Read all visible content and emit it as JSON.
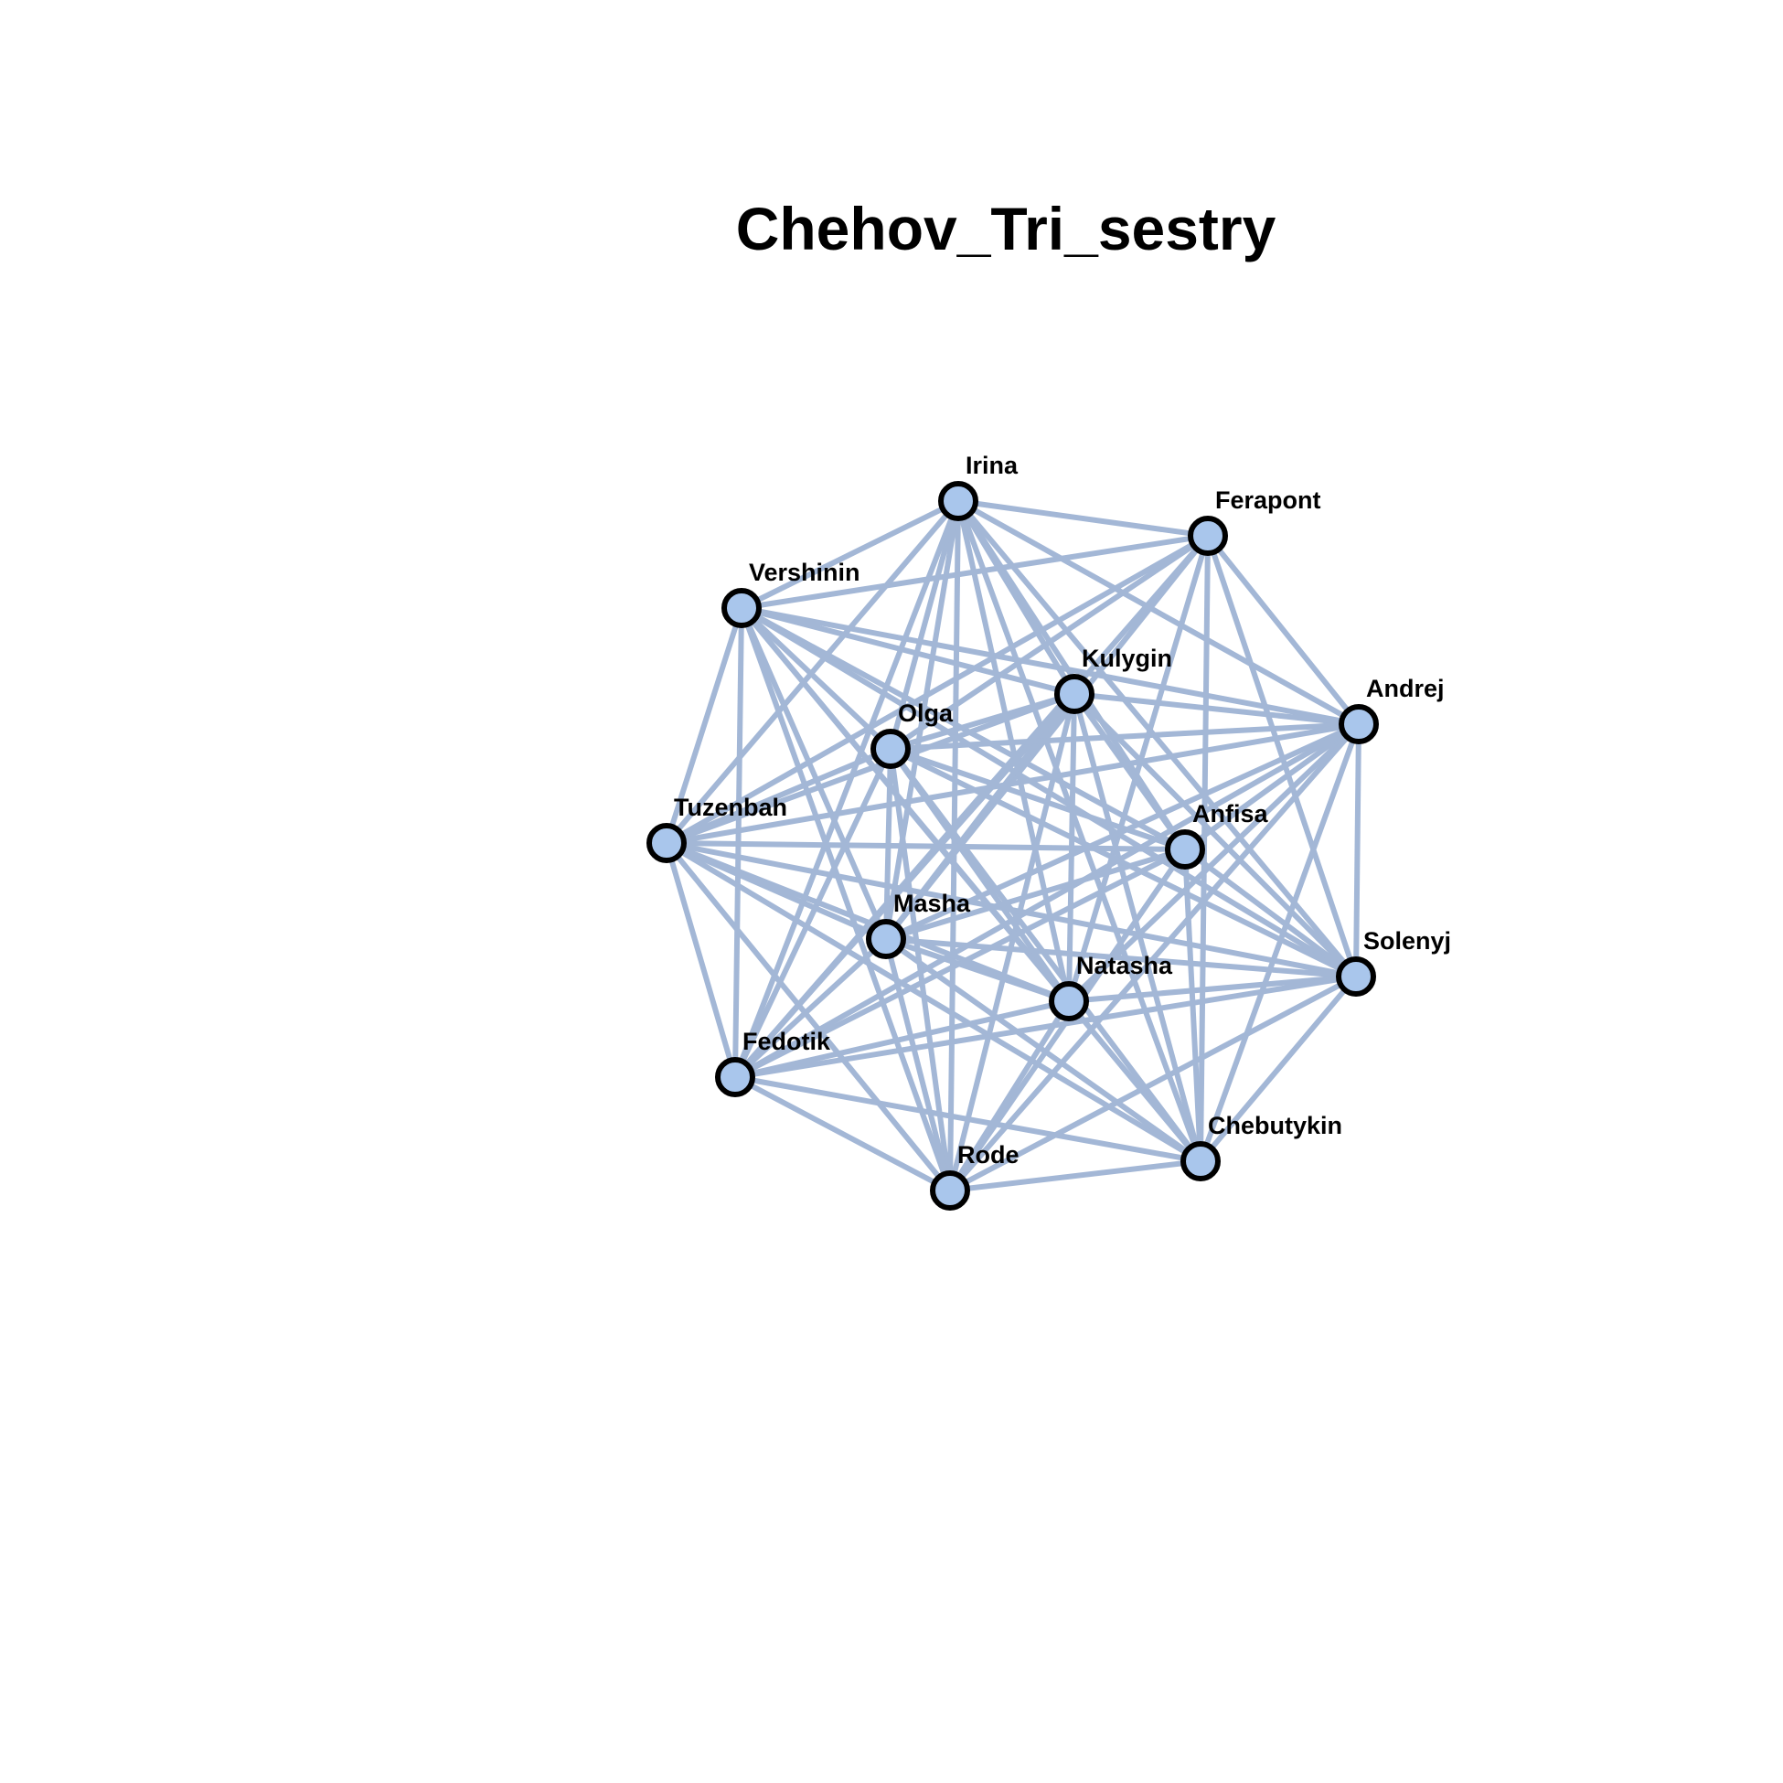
{
  "title": "Chehov_Tri_sestry",
  "colors": {
    "background": "#ffffff",
    "edge": "#a3b7d6",
    "node_fill": "#a9c6ec",
    "node_stroke": "#000000",
    "text": "#000000"
  },
  "nodes": [
    {
      "id": "irina",
      "label": "Irina"
    },
    {
      "id": "ferapont",
      "label": "Ferapont"
    },
    {
      "id": "vershinin",
      "label": "Vershinin"
    },
    {
      "id": "kulygin",
      "label": "Kulygin"
    },
    {
      "id": "andrej",
      "label": "Andrej"
    },
    {
      "id": "olga",
      "label": "Olga"
    },
    {
      "id": "tuzenbah",
      "label": "Tuzenbah"
    },
    {
      "id": "anfisa",
      "label": "Anfisa"
    },
    {
      "id": "masha",
      "label": "Masha"
    },
    {
      "id": "solenyj",
      "label": "Solenyj"
    },
    {
      "id": "natasha",
      "label": "Natasha"
    },
    {
      "id": "fedotik",
      "label": "Fedotik"
    },
    {
      "id": "chebutykin",
      "label": "Chebutykin"
    },
    {
      "id": "rode",
      "label": "Rode"
    }
  ],
  "edges": [
    [
      "irina",
      "ferapont"
    ],
    [
      "irina",
      "vershinin"
    ],
    [
      "irina",
      "kulygin"
    ],
    [
      "irina",
      "andrej"
    ],
    [
      "irina",
      "olga"
    ],
    [
      "irina",
      "tuzenbah"
    ],
    [
      "irina",
      "anfisa"
    ],
    [
      "irina",
      "masha"
    ],
    [
      "irina",
      "solenyj"
    ],
    [
      "irina",
      "natasha"
    ],
    [
      "irina",
      "fedotik"
    ],
    [
      "irina",
      "chebutykin"
    ],
    [
      "irina",
      "rode"
    ],
    [
      "ferapont",
      "vershinin"
    ],
    [
      "ferapont",
      "andrej"
    ],
    [
      "ferapont",
      "olga"
    ],
    [
      "ferapont",
      "masha"
    ],
    [
      "ferapont",
      "solenyj"
    ],
    [
      "ferapont",
      "natasha"
    ],
    [
      "ferapont",
      "fedotik"
    ],
    [
      "ferapont",
      "chebutykin"
    ],
    [
      "ferapont",
      "tuzenbah"
    ],
    [
      "vershinin",
      "kulygin"
    ],
    [
      "vershinin",
      "andrej"
    ],
    [
      "vershinin",
      "olga"
    ],
    [
      "vershinin",
      "tuzenbah"
    ],
    [
      "vershinin",
      "anfisa"
    ],
    [
      "vershinin",
      "masha"
    ],
    [
      "vershinin",
      "solenyj"
    ],
    [
      "vershinin",
      "natasha"
    ],
    [
      "vershinin",
      "fedotik"
    ],
    [
      "vershinin",
      "chebutykin"
    ],
    [
      "vershinin",
      "rode"
    ],
    [
      "kulygin",
      "olga"
    ],
    [
      "kulygin",
      "tuzenbah"
    ],
    [
      "kulygin",
      "anfisa"
    ],
    [
      "kulygin",
      "masha"
    ],
    [
      "kulygin",
      "solenyj"
    ],
    [
      "kulygin",
      "natasha"
    ],
    [
      "kulygin",
      "fedotik"
    ],
    [
      "kulygin",
      "chebutykin"
    ],
    [
      "kulygin",
      "rode"
    ],
    [
      "kulygin",
      "andrej"
    ],
    [
      "andrej",
      "olga"
    ],
    [
      "andrej",
      "tuzenbah"
    ],
    [
      "andrej",
      "anfisa"
    ],
    [
      "andrej",
      "masha"
    ],
    [
      "andrej",
      "solenyj"
    ],
    [
      "andrej",
      "natasha"
    ],
    [
      "andrej",
      "fedotik"
    ],
    [
      "andrej",
      "chebutykin"
    ],
    [
      "andrej",
      "rode"
    ],
    [
      "olga",
      "tuzenbah"
    ],
    [
      "olga",
      "anfisa"
    ],
    [
      "olga",
      "masha"
    ],
    [
      "olga",
      "solenyj"
    ],
    [
      "olga",
      "natasha"
    ],
    [
      "olga",
      "fedotik"
    ],
    [
      "olga",
      "chebutykin"
    ],
    [
      "olga",
      "rode"
    ],
    [
      "tuzenbah",
      "anfisa"
    ],
    [
      "tuzenbah",
      "masha"
    ],
    [
      "tuzenbah",
      "solenyj"
    ],
    [
      "tuzenbah",
      "natasha"
    ],
    [
      "tuzenbah",
      "fedotik"
    ],
    [
      "tuzenbah",
      "chebutykin"
    ],
    [
      "tuzenbah",
      "rode"
    ],
    [
      "anfisa",
      "masha"
    ],
    [
      "anfisa",
      "solenyj"
    ],
    [
      "anfisa",
      "fedotik"
    ],
    [
      "anfisa",
      "chebutykin"
    ],
    [
      "anfisa",
      "rode"
    ],
    [
      "masha",
      "solenyj"
    ],
    [
      "masha",
      "natasha"
    ],
    [
      "masha",
      "fedotik"
    ],
    [
      "masha",
      "chebutykin"
    ],
    [
      "masha",
      "rode"
    ],
    [
      "solenyj",
      "natasha"
    ],
    [
      "solenyj",
      "fedotik"
    ],
    [
      "solenyj",
      "chebutykin"
    ],
    [
      "solenyj",
      "rode"
    ],
    [
      "natasha",
      "fedotik"
    ],
    [
      "natasha",
      "rode"
    ],
    [
      "fedotik",
      "chebutykin"
    ],
    [
      "fedotik",
      "rode"
    ],
    [
      "chebutykin",
      "rode"
    ]
  ]
}
